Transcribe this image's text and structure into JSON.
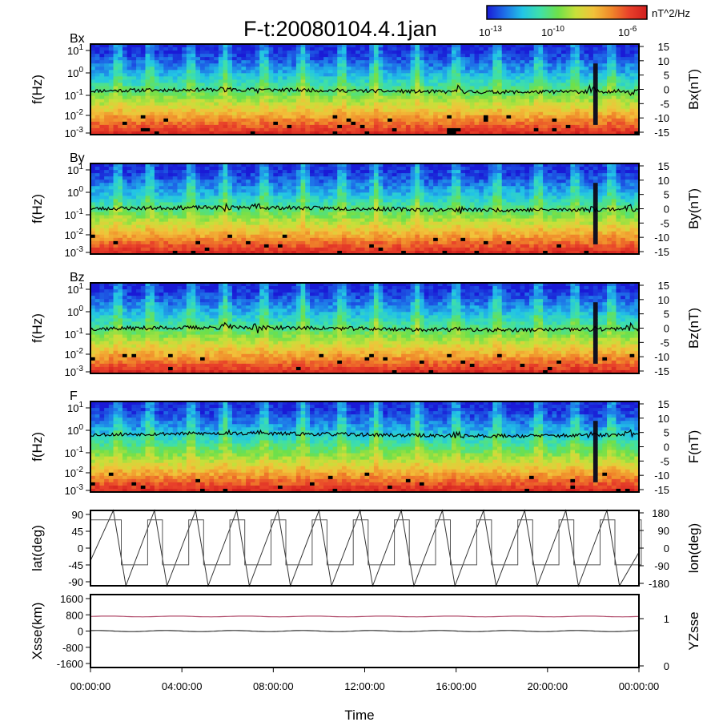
{
  "title": "F-t:20080104.4.1jan",
  "colorbar": {
    "unit": "nT^2/Hz",
    "ticks": [
      {
        "base": "10",
        "exp": "-13"
      },
      {
        "base": "10",
        "exp": "-10"
      },
      {
        "base": "10",
        "exp": "-6"
      }
    ],
    "colors": [
      "#1a1ad6",
      "#1e6fe8",
      "#22c4e6",
      "#3fe0a8",
      "#6ee04a",
      "#c8e03a",
      "#f2c23a",
      "#f0882a",
      "#e8402a",
      "#d01e1e"
    ]
  },
  "chart_data": [
    {
      "type": "heatmap",
      "panel_label": "Bx",
      "ylabel": "f(Hz)",
      "y2label": "Bx(nT)",
      "yticks": [
        {
          "base": "10",
          "exp": "1"
        },
        {
          "base": "10",
          "exp": "0"
        },
        {
          "base": "10",
          "exp": "-1"
        },
        {
          "base": "10",
          "exp": "-2"
        },
        {
          "base": "10",
          "exp": "-3"
        }
      ],
      "y2ticks": [
        "15",
        "10",
        "5",
        "0",
        "-5",
        "-10",
        "-15"
      ],
      "ylim": [
        0.001,
        20
      ],
      "y2lim": [
        -15,
        15
      ],
      "trace": {
        "baseline": -0.5,
        "amplitude": 1.2,
        "seed": 11
      }
    },
    {
      "type": "heatmap",
      "panel_label": "By",
      "ylabel": "f(Hz)",
      "y2label": "By(nT)",
      "yticks": [
        {
          "base": "10",
          "exp": "1"
        },
        {
          "base": "10",
          "exp": "0"
        },
        {
          "base": "10",
          "exp": "-1"
        },
        {
          "base": "10",
          "exp": "-2"
        },
        {
          "base": "10",
          "exp": "-3"
        }
      ],
      "y2ticks": [
        "15",
        "10",
        "5",
        "0",
        "-5",
        "-10",
        "-15"
      ],
      "ylim": [
        0.001,
        20
      ],
      "y2lim": [
        -15,
        15
      ],
      "trace": {
        "baseline": 0,
        "amplitude": 1.3,
        "seed": 23
      }
    },
    {
      "type": "heatmap",
      "panel_label": "Bz",
      "ylabel": "f(Hz)",
      "y2label": "Bz(nT)",
      "yticks": [
        {
          "base": "10",
          "exp": "1"
        },
        {
          "base": "10",
          "exp": "0"
        },
        {
          "base": "10",
          "exp": "-1"
        },
        {
          "base": "10",
          "exp": "-2"
        },
        {
          "base": "10",
          "exp": "-3"
        }
      ],
      "y2ticks": [
        "15",
        "10",
        "5",
        "0",
        "-5",
        "-10",
        "-15"
      ],
      "ylim": [
        0.001,
        20
      ],
      "y2lim": [
        -15,
        15
      ],
      "trace": {
        "baseline": -0.2,
        "amplitude": 1.3,
        "seed": 37
      }
    },
    {
      "type": "heatmap",
      "panel_label": "F",
      "ylabel": "f(Hz)",
      "y2label": "F(nT)",
      "yticks": [
        {
          "base": "10",
          "exp": "1"
        },
        {
          "base": "10",
          "exp": "0"
        },
        {
          "base": "10",
          "exp": "-1"
        },
        {
          "base": "10",
          "exp": "-2"
        },
        {
          "base": "10",
          "exp": "-3"
        }
      ],
      "y2ticks": [
        "15",
        "10",
        "5",
        "0",
        "-5",
        "-10",
        "-15"
      ],
      "ylim": [
        0.001,
        20
      ],
      "y2lim": [
        -15,
        15
      ],
      "trace": {
        "baseline": 4,
        "amplitude": 1.2,
        "seed": 53
      }
    },
    {
      "type": "line",
      "ylabel": "lat(deg)",
      "y2label": "lon(deg)",
      "yticks": [
        "90",
        "45",
        "0",
        "-45",
        "-90"
      ],
      "y2ticks": [
        "180",
        "90",
        "0",
        "-90",
        "-180"
      ],
      "ylim": [
        -90,
        90
      ],
      "y2lim": [
        -180,
        180
      ],
      "sawtooth_peaks_hours": [
        1.55,
        3.35,
        5.15,
        6.95,
        8.75,
        10.55,
        12.35,
        14.15,
        15.95,
        17.75,
        19.55,
        21.35,
        23.15
      ],
      "lat_range": [
        -90,
        90
      ],
      "lon_step_levels": [
        -90,
        135
      ]
    },
    {
      "type": "line",
      "ylabel": "Xsse(km)",
      "y2label": "YZsse",
      "yticks": [
        "1600",
        "800",
        "0",
        "-800",
        "-1600"
      ],
      "y2ticks": [
        "1",
        "0"
      ],
      "ylim": [
        -2000,
        2000
      ],
      "y2lim": [
        0,
        1.45
      ],
      "series": [
        {
          "color": "#b04a6a",
          "level": 800,
          "ripple": 20
        },
        {
          "color": "#333333",
          "level": 0,
          "ripple": 30
        }
      ]
    }
  ],
  "xaxis": {
    "label": "Time",
    "ticks": [
      "00:00:00",
      "04:00:00",
      "08:00:00",
      "12:00:00",
      "16:00:00",
      "20:00:00",
      "00:00:00"
    ],
    "range_hours": [
      0,
      24
    ]
  }
}
